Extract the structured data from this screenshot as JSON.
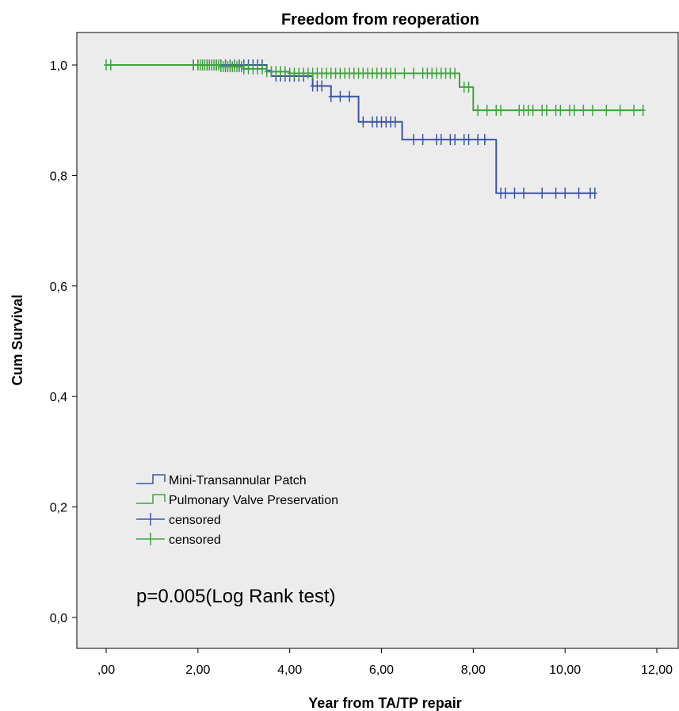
{
  "chart_data": {
    "type": "line",
    "subtype": "kaplan-meier",
    "title": "Freedom from reoperation",
    "xlabel": "Year from TA/TP repair",
    "ylabel": "Cum Survival",
    "xlim": [
      0,
      12
    ],
    "ylim": [
      0,
      1
    ],
    "x_ticks": [
      0,
      2,
      4,
      6,
      8,
      10,
      12
    ],
    "x_tick_labels": [
      ",00",
      "2,00",
      "4,00",
      "6,00",
      "8,00",
      "10,00",
      "12,00"
    ],
    "y_ticks": [
      0,
      0.2,
      0.4,
      0.6,
      0.8,
      1.0
    ],
    "y_tick_labels": [
      "0,0",
      "0,2",
      "0,4",
      "0,6",
      "0,8",
      "1,0"
    ],
    "grid": false,
    "background_color": "#ececec",
    "legend_position": "bottom-left",
    "annotation": "p=0.005(Log Rank test)",
    "series": [
      {
        "name": "Mini-Transannular Patch",
        "color": "#3a55a4",
        "steps": [
          [
            0,
            1.0
          ],
          [
            3.5,
            0.99
          ],
          [
            3.6,
            0.98
          ],
          [
            4.5,
            0.962
          ],
          [
            4.9,
            0.943
          ],
          [
            5.5,
            0.897
          ],
          [
            6.45,
            0.865
          ],
          [
            8.5,
            0.768
          ]
        ],
        "end": 10.65,
        "censored": [
          1.9,
          2.0,
          2.1,
          2.2,
          2.3,
          2.4,
          2.5,
          2.6,
          2.7,
          2.8,
          2.9,
          3.0,
          3.1,
          3.2,
          3.3,
          3.4,
          3.7,
          3.8,
          3.9,
          4.0,
          4.1,
          4.2,
          4.3,
          4.5,
          4.6,
          4.7,
          4.9,
          5.1,
          5.3,
          5.6,
          5.8,
          5.9,
          6.0,
          6.1,
          6.2,
          6.3,
          6.7,
          6.9,
          7.2,
          7.3,
          7.5,
          7.6,
          7.8,
          7.9,
          8.1,
          8.25,
          8.6,
          8.7,
          8.9,
          9.1,
          9.5,
          9.8,
          10.0,
          10.3,
          10.55,
          10.65
        ]
      },
      {
        "name": "Pulmonary Valve Preservation",
        "color": "#3fa33d",
        "steps": [
          [
            0,
            1.0
          ],
          [
            2.5,
            0.997
          ],
          [
            3.0,
            0.993
          ],
          [
            3.5,
            0.988
          ],
          [
            4.0,
            0.985
          ],
          [
            7.7,
            0.96
          ],
          [
            8.0,
            0.918
          ]
        ],
        "end": 11.7,
        "censored": [
          0.0,
          0.1,
          1.9,
          2.0,
          2.05,
          2.1,
          2.15,
          2.2,
          2.25,
          2.3,
          2.35,
          2.4,
          2.45,
          2.5,
          2.55,
          2.6,
          2.65,
          2.7,
          2.75,
          2.8,
          2.85,
          2.9,
          2.95,
          3.0,
          3.1,
          3.2,
          3.3,
          3.4,
          3.5,
          3.6,
          3.7,
          3.8,
          3.9,
          4.0,
          4.1,
          4.2,
          4.3,
          4.4,
          4.5,
          4.6,
          4.7,
          4.8,
          4.9,
          5.0,
          5.1,
          5.2,
          5.3,
          5.4,
          5.5,
          5.6,
          5.7,
          5.8,
          5.9,
          6.0,
          6.1,
          6.2,
          6.3,
          6.5,
          6.7,
          6.9,
          7.0,
          7.1,
          7.2,
          7.3,
          7.4,
          7.5,
          7.6,
          7.8,
          7.9,
          8.1,
          8.3,
          8.5,
          8.6,
          9.0,
          9.1,
          9.2,
          9.3,
          9.5,
          9.6,
          9.8,
          9.9,
          10.1,
          10.2,
          10.4,
          10.6,
          10.9,
          11.2,
          11.5,
          11.7
        ]
      }
    ],
    "legend": [
      {
        "label": "Mini-Transannular Patch",
        "kind": "step",
        "color": "#3a55a4"
      },
      {
        "label": "Pulmonary Valve Preservation",
        "kind": "step",
        "color": "#3fa33d"
      },
      {
        "label": "censored",
        "kind": "censor",
        "color": "#3a55a4"
      },
      {
        "label": "censored",
        "kind": "censor",
        "color": "#3fa33d"
      }
    ]
  }
}
